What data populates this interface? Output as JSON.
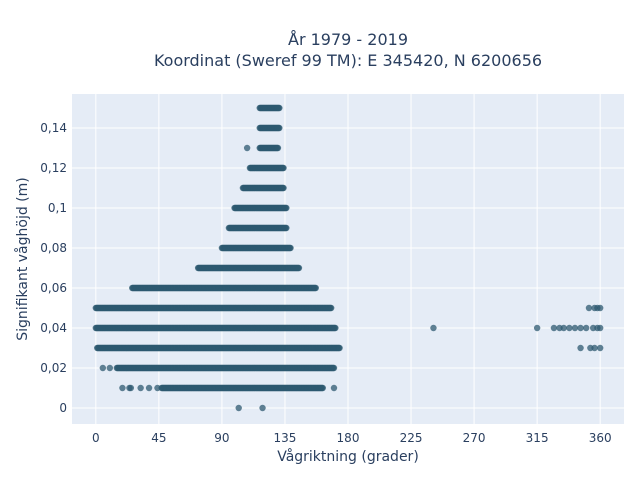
{
  "chart_data": {
    "type": "scatter",
    "title": "År 1979 - 2019",
    "subtitle": "Koordinat (Sweref 99 TM): E 345420, N 6200656",
    "xlabel": "Vågriktning (grader)",
    "ylabel": "Signifikant våghöjd (m)",
    "xlim": [
      -17,
      377
    ],
    "ylim": [
      -0.008,
      0.157
    ],
    "x_ticks": [
      0,
      45,
      90,
      135,
      180,
      225,
      270,
      315,
      360
    ],
    "x_tick_labels": [
      "0",
      "45",
      "90",
      "135",
      "180",
      "225",
      "270",
      "315",
      "360"
    ],
    "y_ticks": [
      0,
      0.02,
      0.04,
      0.06,
      0.08,
      0.1,
      0.12,
      0.14
    ],
    "y_tick_labels": [
      "0",
      "0,02",
      "0,04",
      "0,06",
      "0,08",
      "0,1",
      "0,12",
      "0,14"
    ],
    "grid": true,
    "marker_color": "#2e5a70",
    "plot_background": "#e5ecf6",
    "bands": [
      {
        "y": 0.15,
        "x_min": 117,
        "x_max": 131
      },
      {
        "y": 0.14,
        "x_min": 117,
        "x_max": 131
      },
      {
        "y": 0.13,
        "x_min": 117,
        "x_max": 130
      },
      {
        "y": 0.12,
        "x_min": 110,
        "x_max": 134
      },
      {
        "y": 0.11,
        "x_min": 105,
        "x_max": 134
      },
      {
        "y": 0.1,
        "x_min": 99,
        "x_max": 136
      },
      {
        "y": 0.09,
        "x_min": 95,
        "x_max": 136
      },
      {
        "y": 0.08,
        "x_min": 90,
        "x_max": 139
      },
      {
        "y": 0.07,
        "x_min": 73,
        "x_max": 145
      },
      {
        "y": 0.06,
        "x_min": 26,
        "x_max": 157
      },
      {
        "y": 0.05,
        "x_min": 0,
        "x_max": 168
      },
      {
        "y": 0.04,
        "x_min": 0,
        "x_max": 171
      },
      {
        "y": 0.03,
        "x_min": 1,
        "x_max": 174
      },
      {
        "y": 0.02,
        "x_min": 15,
        "x_max": 170
      },
      {
        "y": 0.01,
        "x_min": 47,
        "x_max": 162
      }
    ],
    "scattered_points": [
      {
        "x": 108,
        "y": 0.13
      },
      {
        "x": 5,
        "y": 0.02
      },
      {
        "x": 10,
        "y": 0.02
      },
      {
        "x": 19,
        "y": 0.01
      },
      {
        "x": 24,
        "y": 0.01
      },
      {
        "x": 25,
        "y": 0.01
      },
      {
        "x": 32,
        "y": 0.01
      },
      {
        "x": 38,
        "y": 0.01
      },
      {
        "x": 44,
        "y": 0.01
      },
      {
        "x": 170,
        "y": 0.01
      },
      {
        "x": 102,
        "y": 0
      },
      {
        "x": 119,
        "y": 0
      },
      {
        "x": 241,
        "y": 0.04
      },
      {
        "x": 315,
        "y": 0.04
      },
      {
        "x": 327,
        "y": 0.04
      },
      {
        "x": 331,
        "y": 0.04
      },
      {
        "x": 334,
        "y": 0.04
      },
      {
        "x": 338,
        "y": 0.04
      },
      {
        "x": 342,
        "y": 0.04
      },
      {
        "x": 346,
        "y": 0.04
      },
      {
        "x": 350,
        "y": 0.04
      },
      {
        "x": 355,
        "y": 0.04
      },
      {
        "x": 358,
        "y": 0.04
      },
      {
        "x": 360,
        "y": 0.04
      },
      {
        "x": 352,
        "y": 0.05
      },
      {
        "x": 356,
        "y": 0.05
      },
      {
        "x": 358,
        "y": 0.05
      },
      {
        "x": 360,
        "y": 0.05
      },
      {
        "x": 346,
        "y": 0.03
      },
      {
        "x": 353,
        "y": 0.03
      },
      {
        "x": 356,
        "y": 0.03
      },
      {
        "x": 360,
        "y": 0.03
      }
    ]
  }
}
